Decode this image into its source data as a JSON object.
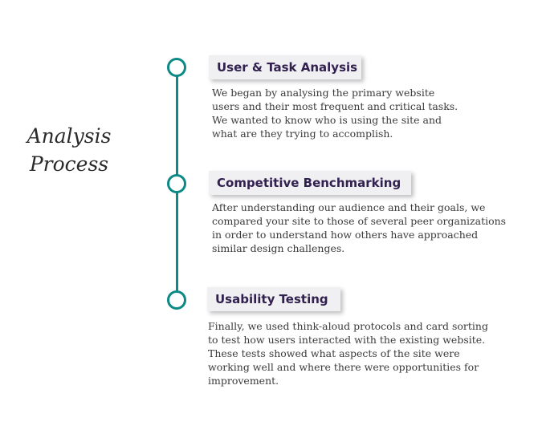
{
  "title": {
    "line1": "Analysis",
    "line2": "Process"
  },
  "accent_color": "#0d8a86",
  "title_color": "#32204f",
  "steps": [
    {
      "title": "User & Task Analysis",
      "body": "We began by analysing the primary website\nusers and their most frequent and critical tasks.\nWe wanted to know who is using the site and\nwhat are they trying to accomplish."
    },
    {
      "title": "Competitive Benchmarking",
      "body": "After understanding our audience and their goals, we\ncompared your site to those of several peer organizations\nin order to understand how others have approached\nsimilar design challenges."
    },
    {
      "title": "Usability Testing",
      "body": "Finally, we used think-aloud protocols and card sorting\nto test how users interacted with the existing website.\nThese tests showed what aspects of the site were\nworking well and where there were opportunities for\nimprovement."
    }
  ]
}
